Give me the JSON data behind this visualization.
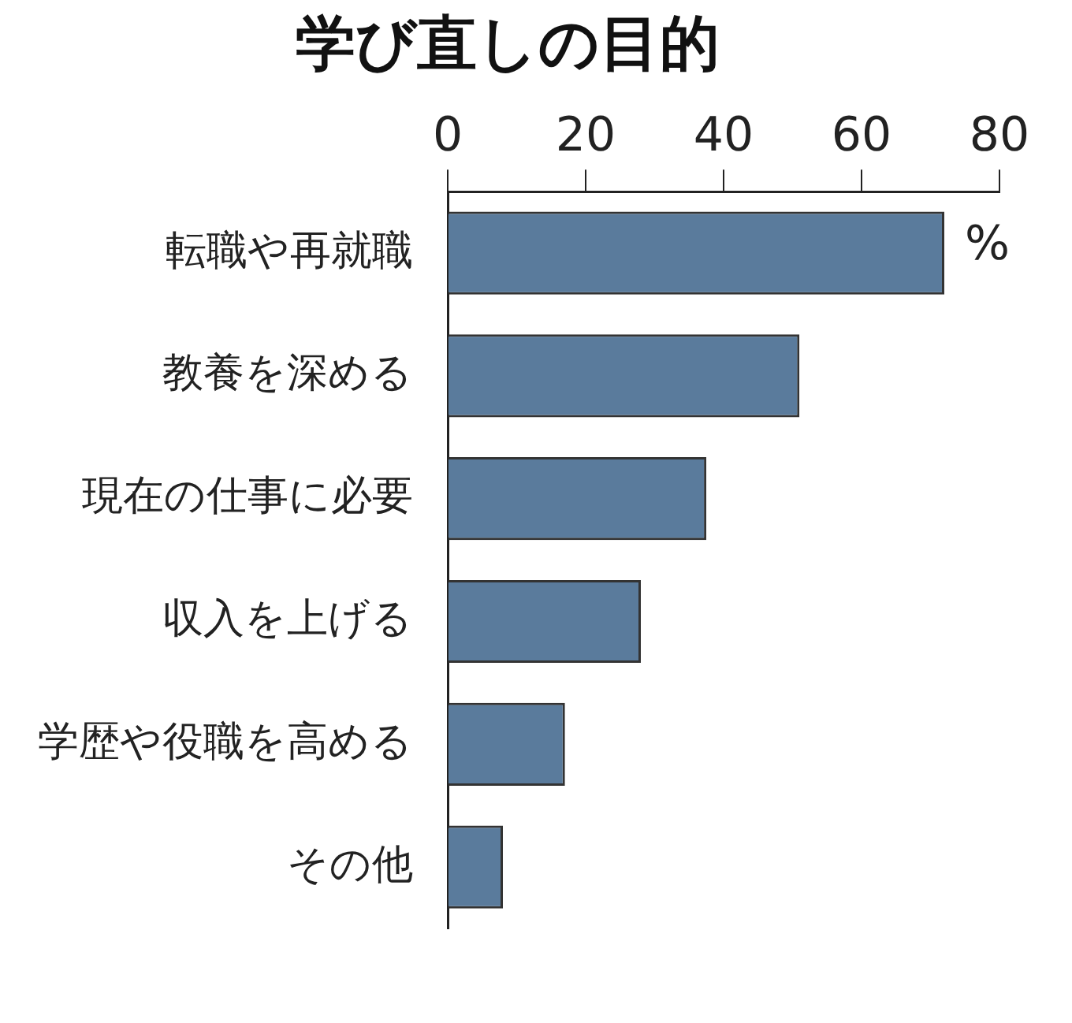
{
  "chart_data": {
    "type": "bar",
    "orientation": "horizontal",
    "title": "学び直しの目的",
    "xlabel": "%",
    "categories": [
      "転職や再就職",
      "教養を深める",
      "現在の仕事に必要",
      "収入を上げる",
      "学歴や役職を高める",
      "その他"
    ],
    "values": [
      72,
      51,
      37.5,
      28,
      17,
      8
    ],
    "color": "#5a7b9c",
    "xlim": [
      0,
      80
    ],
    "xticks": [
      0,
      20,
      40,
      60,
      80
    ],
    "grid": false,
    "legend": false
  }
}
